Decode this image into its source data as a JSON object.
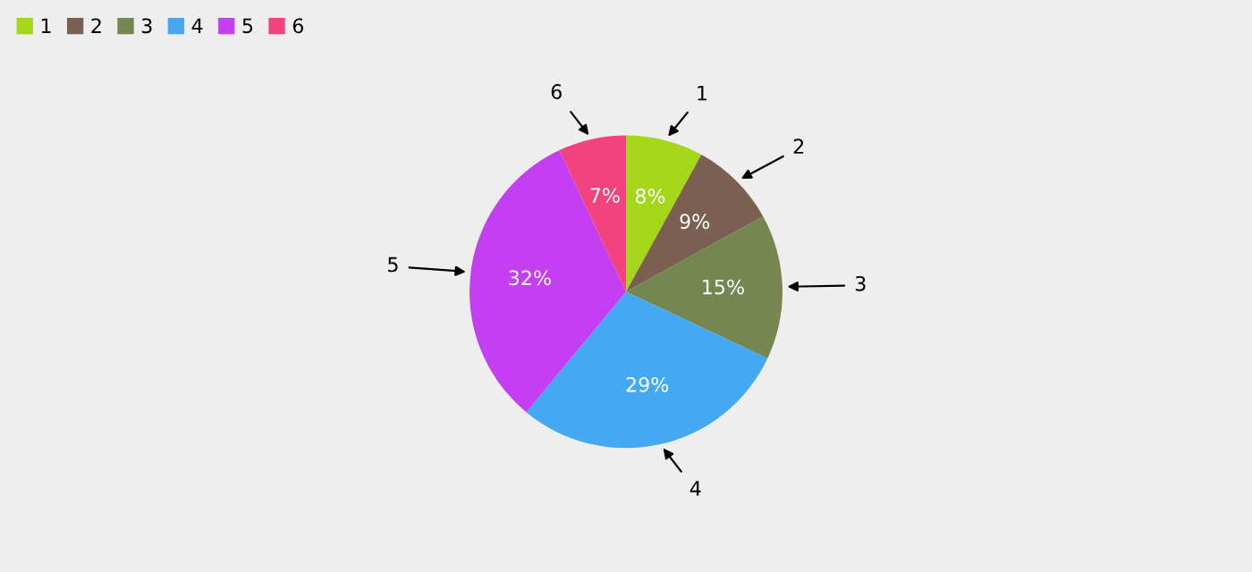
{
  "chart_data": {
    "type": "pie",
    "categories": [
      "1",
      "2",
      "3",
      "4",
      "5",
      "6"
    ],
    "values": [
      8,
      9,
      15,
      29,
      32,
      7
    ],
    "value_labels": [
      "8%",
      "9%",
      "15%",
      "29%",
      "32%",
      "7%"
    ],
    "colors": [
      "#a4d61a",
      "#7b6052",
      "#758650",
      "#44a9f2",
      "#c43ff2",
      "#f2437f"
    ],
    "legend": "top left"
  }
}
